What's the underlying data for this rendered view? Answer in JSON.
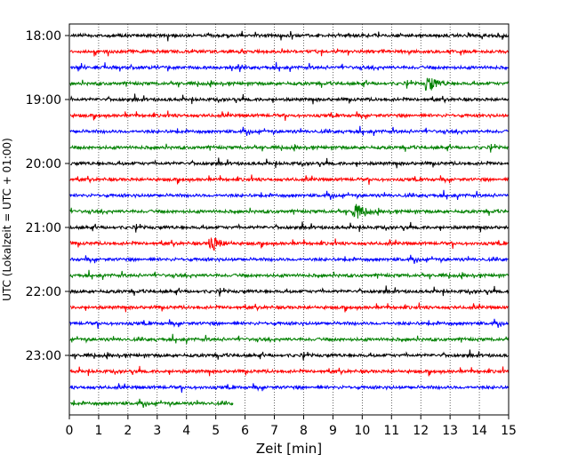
{
  "chart_data": {
    "type": "line",
    "title": "",
    "xlabel": "Zeit  [min]",
    "ylabel": "UTC (Lokalzeit = UTC + 01:00)",
    "xlim": [
      0,
      15
    ],
    "x_ticks": [
      0,
      1,
      2,
      3,
      4,
      5,
      6,
      7,
      8,
      9,
      10,
      11,
      12,
      13,
      14,
      15
    ],
    "x_tick_labels": [
      "0",
      "1",
      "2",
      "3",
      "4",
      "5",
      "6",
      "7",
      "8",
      "9",
      "10",
      "11",
      "12",
      "13",
      "14",
      "15"
    ],
    "y_tick_labels": [
      "18:00",
      "19:00",
      "20:00",
      "21:00",
      "22:00",
      "23:00"
    ],
    "grid": "vertical dotted at each minute",
    "legend": "none",
    "trace_colors": [
      "#000000",
      "#ff0000",
      "#0000ff",
      "#008000"
    ],
    "trace_count": 24,
    "trace_interval_minutes": 15,
    "last_trace_end_minute": 5.6,
    "notable_events": [
      {
        "trace": "21:15",
        "minute": 4.9,
        "note": "large amplitude burst"
      },
      {
        "trace": "18:45",
        "minute": 12.3,
        "note": "amplitude burst"
      },
      {
        "trace": "20:45",
        "minute": 9.8,
        "note": "amplitude burst"
      }
    ]
  }
}
